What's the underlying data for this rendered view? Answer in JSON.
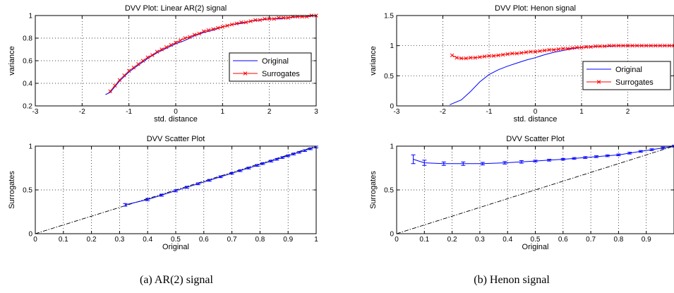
{
  "colors": {
    "original": "#0000ff",
    "surrogates": "#ff0000",
    "reference": "#000000",
    "grid": "#000000"
  },
  "captions": {
    "left": "(a) AR(2) signal",
    "right": "(b) Henon signal"
  },
  "chart_data": [
    {
      "type": "line",
      "title": "DVV Plot: Linear AR(2) signal",
      "xlabel": "std. distance",
      "ylabel": "variance",
      "xlim": [
        -3,
        3
      ],
      "ylim": [
        0.2,
        1
      ],
      "xticks": [
        -3,
        -2,
        -1,
        0,
        1,
        2,
        3
      ],
      "yticks": [
        0.2,
        0.4,
        0.6,
        0.8,
        1
      ],
      "xtick_labels": [
        "-3",
        "-2",
        "-1",
        "0",
        "1",
        "2",
        "3"
      ],
      "ytick_labels": [
        "0.2",
        "0.4",
        "0.6",
        "0.8",
        "1"
      ],
      "grid": true,
      "legend_position": "center-right",
      "series": [
        {
          "name": "Original",
          "marker": "none",
          "x": [
            -1.5,
            -1.4,
            -1.3,
            -1.2,
            -1.1,
            -1.0,
            -0.8,
            -0.6,
            -0.4,
            -0.2,
            0.0,
            0.2,
            0.4,
            0.6,
            0.8,
            1.0,
            1.2,
            1.4,
            1.6,
            1.8,
            2.0,
            2.2,
            2.4,
            2.6,
            2.8,
            3.0
          ],
          "y": [
            0.3,
            0.32,
            0.37,
            0.42,
            0.46,
            0.5,
            0.56,
            0.62,
            0.67,
            0.71,
            0.75,
            0.78,
            0.82,
            0.85,
            0.87,
            0.9,
            0.92,
            0.93,
            0.95,
            0.96,
            0.97,
            0.97,
            0.98,
            0.99,
            0.99,
            1.0
          ]
        },
        {
          "name": "Surrogates",
          "marker": "x",
          "x": [
            -1.4,
            -1.3,
            -1.2,
            -1.1,
            -1.0,
            -0.9,
            -0.8,
            -0.7,
            -0.6,
            -0.5,
            -0.4,
            -0.3,
            -0.2,
            -0.1,
            0.0,
            0.1,
            0.2,
            0.3,
            0.4,
            0.5,
            0.6,
            0.7,
            0.8,
            0.9,
            1.0,
            1.1,
            1.2,
            1.3,
            1.4,
            1.5,
            1.6,
            1.7,
            1.8,
            1.9,
            2.0,
            2.1,
            2.2,
            2.3,
            2.4,
            2.5,
            2.6,
            2.7,
            2.8,
            2.9,
            3.0
          ],
          "y": [
            0.33,
            0.38,
            0.43,
            0.47,
            0.51,
            0.54,
            0.57,
            0.6,
            0.63,
            0.65,
            0.68,
            0.7,
            0.72,
            0.74,
            0.76,
            0.78,
            0.8,
            0.81,
            0.83,
            0.84,
            0.86,
            0.87,
            0.88,
            0.89,
            0.9,
            0.91,
            0.92,
            0.93,
            0.94,
            0.94,
            0.95,
            0.96,
            0.96,
            0.97,
            0.97,
            0.97,
            0.98,
            0.98,
            0.98,
            0.99,
            0.99,
            0.99,
            0.99,
            1.0,
            1.0
          ]
        }
      ]
    },
    {
      "type": "line",
      "title": "DVV Plot: Henon signal",
      "xlabel": "std. distance",
      "ylabel": "variance",
      "xlim": [
        -3,
        3
      ],
      "ylim": [
        0,
        1.5
      ],
      "xticks": [
        -3,
        -2,
        -1,
        0,
        1,
        2
      ],
      "yticks": [
        0,
        0.5,
        1,
        1.5
      ],
      "xtick_labels": [
        "-3",
        "-2",
        "-1",
        "0",
        "1",
        "2"
      ],
      "ytick_labels": [
        "0",
        "0.5",
        "1",
        "1.5"
      ],
      "grid": true,
      "legend_position": "center-right",
      "series": [
        {
          "name": "Original",
          "marker": "none",
          "x": [
            -1.85,
            -1.6,
            -1.4,
            -1.2,
            -1.0,
            -0.8,
            -0.6,
            -0.4,
            -0.2,
            0.0,
            0.2,
            0.4,
            0.6,
            0.8,
            1.0,
            1.2,
            1.4,
            1.6,
            1.8,
            2.0,
            2.2,
            2.4,
            2.6,
            2.8,
            3.0
          ],
          "y": [
            0.02,
            0.1,
            0.24,
            0.4,
            0.52,
            0.6,
            0.66,
            0.71,
            0.76,
            0.8,
            0.85,
            0.89,
            0.92,
            0.95,
            0.97,
            0.98,
            0.99,
            0.99,
            1.0,
            1.0,
            1.0,
            1.0,
            1.0,
            1.0,
            1.0
          ]
        },
        {
          "name": "Surrogates",
          "marker": "x",
          "x": [
            -1.8,
            -1.7,
            -1.6,
            -1.5,
            -1.4,
            -1.3,
            -1.2,
            -1.1,
            -1.0,
            -0.9,
            -0.8,
            -0.7,
            -0.6,
            -0.5,
            -0.4,
            -0.3,
            -0.2,
            -0.1,
            0.0,
            0.1,
            0.2,
            0.3,
            0.4,
            0.5,
            0.6,
            0.7,
            0.8,
            0.9,
            1.0,
            1.1,
            1.2,
            1.3,
            1.4,
            1.5,
            1.6,
            1.7,
            1.8,
            1.9,
            2.0,
            2.1,
            2.2,
            2.3,
            2.4,
            2.5,
            2.6,
            2.7,
            2.8,
            2.9,
            3.0
          ],
          "y": [
            0.84,
            0.8,
            0.79,
            0.79,
            0.8,
            0.8,
            0.81,
            0.82,
            0.83,
            0.83,
            0.84,
            0.85,
            0.86,
            0.87,
            0.87,
            0.88,
            0.89,
            0.9,
            0.9,
            0.91,
            0.92,
            0.93,
            0.93,
            0.94,
            0.95,
            0.95,
            0.96,
            0.97,
            0.97,
            0.98,
            0.98,
            0.99,
            0.99,
            0.99,
            1.0,
            1.0,
            1.0,
            1.0,
            1.0,
            1.0,
            1.0,
            1.0,
            1.0,
            1.0,
            1.0,
            1.0,
            1.0,
            1.0,
            1.0
          ]
        }
      ]
    },
    {
      "type": "scatter",
      "title": "DVV Scatter Plot",
      "xlabel": "Original",
      "ylabel": "Surrogates",
      "xlim": [
        0,
        1
      ],
      "ylim": [
        0,
        1
      ],
      "xticks": [
        0,
        0.1,
        0.2,
        0.3,
        0.4,
        0.5,
        0.6,
        0.7,
        0.8,
        0.9,
        1
      ],
      "yticks": [
        0,
        0.5,
        1
      ],
      "xtick_labels": [
        "0",
        "0.1",
        "0.2",
        "0.3",
        "0.4",
        "0.5",
        "0.6",
        "0.7",
        "0.8",
        "0.9",
        "1"
      ],
      "ytick_labels": [
        "0",
        "0.5",
        "1"
      ],
      "grid": true,
      "reference_line": {
        "x": [
          0,
          1
        ],
        "y": [
          0,
          1
        ]
      },
      "series": [
        {
          "name": "",
          "marker": "errorbar",
          "x": [
            0.32,
            0.4,
            0.45,
            0.5,
            0.54,
            0.58,
            0.62,
            0.66,
            0.7,
            0.73,
            0.76,
            0.79,
            0.81,
            0.84,
            0.86,
            0.88,
            0.9,
            0.92,
            0.94,
            0.96,
            0.98,
            1.0
          ],
          "y": [
            0.33,
            0.39,
            0.44,
            0.49,
            0.53,
            0.57,
            0.61,
            0.65,
            0.69,
            0.72,
            0.75,
            0.78,
            0.8,
            0.83,
            0.85,
            0.87,
            0.89,
            0.91,
            0.93,
            0.95,
            0.97,
            0.99
          ],
          "err": [
            0.015,
            0.013,
            0.012,
            0.012,
            0.011,
            0.011,
            0.01,
            0.01,
            0.01,
            0.01,
            0.01,
            0.01,
            0.01,
            0.01,
            0.01,
            0.01,
            0.01,
            0.01,
            0.01,
            0.01,
            0.01,
            0.01
          ]
        }
      ]
    },
    {
      "type": "scatter",
      "title": "DVV Scatter Plot",
      "xlabel": "Original",
      "ylabel": "Surrogates",
      "xlim": [
        0,
        1
      ],
      "ylim": [
        0,
        1
      ],
      "xticks": [
        0,
        0.1,
        0.2,
        0.3,
        0.4,
        0.5,
        0.6,
        0.7,
        0.8,
        0.9
      ],
      "yticks": [
        0,
        0.5,
        1
      ],
      "xtick_labels": [
        "0",
        "0.1",
        "0.2",
        "0.3",
        "0.4",
        "0.5",
        "0.6",
        "0.7",
        "0.8",
        "0.9"
      ],
      "ytick_labels": [
        "0",
        "0.5",
        "1"
      ],
      "grid": true,
      "reference_line": {
        "x": [
          0,
          1
        ],
        "y": [
          0,
          1
        ]
      },
      "series": [
        {
          "name": "",
          "marker": "errorbar",
          "x": [
            0.06,
            0.1,
            0.17,
            0.24,
            0.31,
            0.39,
            0.45,
            0.5,
            0.55,
            0.6,
            0.64,
            0.68,
            0.72,
            0.76,
            0.8,
            0.84,
            0.88,
            0.92,
            0.96,
            1.0
          ],
          "y": [
            0.85,
            0.81,
            0.8,
            0.8,
            0.8,
            0.81,
            0.82,
            0.83,
            0.84,
            0.85,
            0.86,
            0.87,
            0.88,
            0.89,
            0.9,
            0.92,
            0.94,
            0.96,
            0.98,
            1.0
          ],
          "err": [
            0.05,
            0.03,
            0.02,
            0.02,
            0.015,
            0.015,
            0.015,
            0.01,
            0.01,
            0.01,
            0.01,
            0.01,
            0.01,
            0.01,
            0.01,
            0.01,
            0.01,
            0.01,
            0.01,
            0.01
          ]
        }
      ]
    }
  ]
}
